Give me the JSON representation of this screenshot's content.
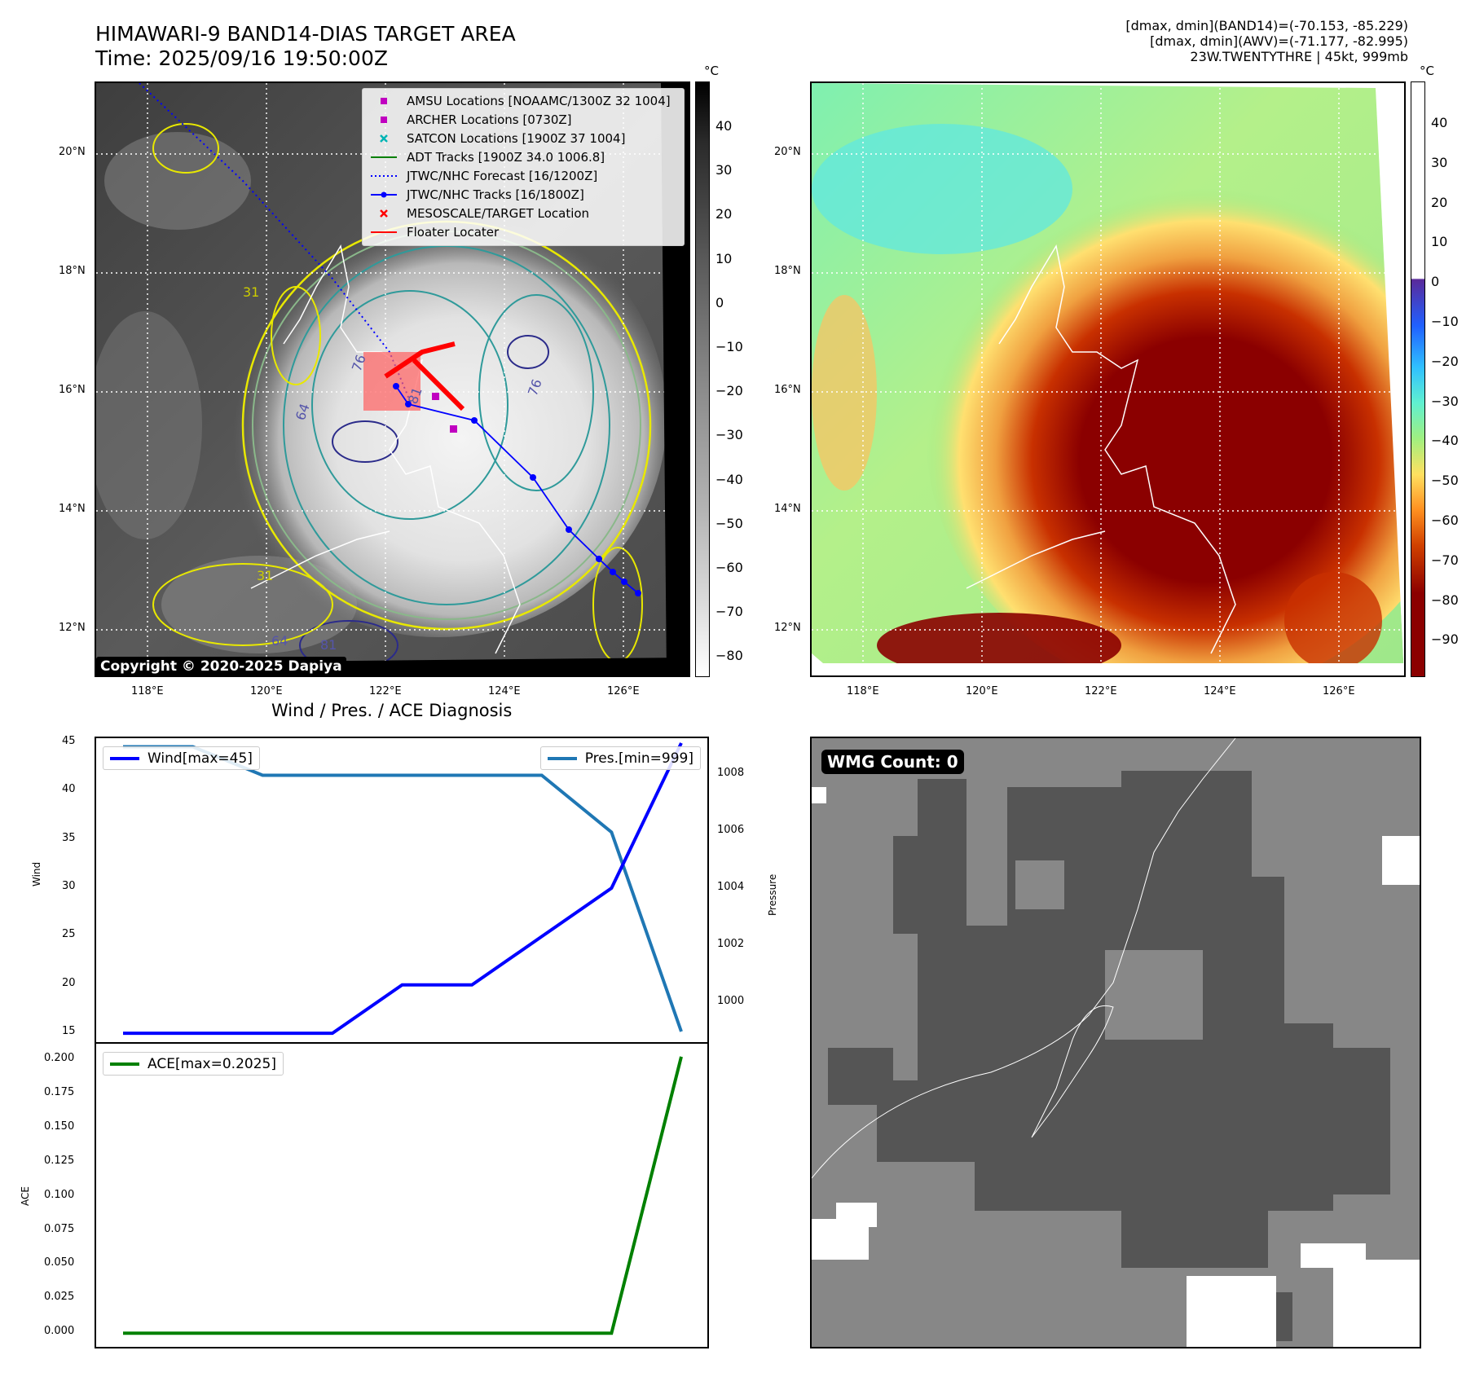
{
  "header": {
    "title_line1": "HIMAWARI-9 BAND14-DIAS TARGET AREA",
    "title_line2": "Time: 2025/09/16 19:50:00Z",
    "info_lines": [
      "[dmax, dmin](BAND14)=(-70.153, -85.229)",
      "[dmax, dmin](AWV)=(-71.177, -82.995)",
      "23W.TWENTYTHRE | 45kt, 999mb"
    ]
  },
  "map_axes": {
    "lon_ticks": [
      "118°E",
      "120°E",
      "122°E",
      "124°E",
      "126°E"
    ],
    "lat_ticks": [
      "20°N",
      "18°N",
      "16°N",
      "14°N",
      "12°N"
    ]
  },
  "ir_panel": {
    "copyright": "Copyright © 2020-2025 Dapiya",
    "legend": [
      {
        "label": "AMSU Locations [NOAAMC/1300Z 32 1004]",
        "symbol": "square",
        "color": "#c000c0"
      },
      {
        "label": "ARCHER Locations [0730Z]",
        "symbol": "square",
        "color": "#c000c0"
      },
      {
        "label": "SATCON Locations [1900Z 37 1004]",
        "symbol": "x",
        "color": "#00b4b4"
      },
      {
        "label": "ADT Tracks [1900Z 34.0 1006.8]",
        "symbol": "line",
        "color": "#008000"
      },
      {
        "label": "JTWC/NHC Forecast [16/1200Z]",
        "symbol": "dotted",
        "color": "#0000ff"
      },
      {
        "label": "JTWC/NHC Tracks [16/1800Z]",
        "symbol": "line-dot",
        "color": "#0000ff"
      },
      {
        "label": "MESOSCALE/TARGET Location",
        "symbol": "x",
        "color": "#ff0000"
      },
      {
        "label": "Floater Locater",
        "symbol": "line",
        "color": "#ff0000"
      }
    ],
    "colorbar": {
      "unit": "°C",
      "ticks": [
        "40",
        "30",
        "20",
        "10",
        "0",
        "−10",
        "−20",
        "−30",
        "−40",
        "−50",
        "−60",
        "−70",
        "−80"
      ]
    },
    "contour_labels": [
      "76",
      "64",
      "81",
      "64",
      "81",
      "76",
      "31",
      "31"
    ]
  },
  "awv_panel": {
    "colorbar": {
      "unit": "°C",
      "ticks": [
        "40",
        "30",
        "20",
        "10",
        "0",
        "−10",
        "−20",
        "−30",
        "−40",
        "−50",
        "−60",
        "−70",
        "−80",
        "−90"
      ]
    }
  },
  "wmg_panel": {
    "badge": "WMG Count: 0"
  },
  "colors": {
    "wind": "#0000ff",
    "pressure": "#1f77b4",
    "ace": "#008000",
    "track": "#0000ff",
    "floater": "#ff0000"
  },
  "chart_data": [
    {
      "type": "line",
      "title": "Wind / Pres. / ACE Diagnosis",
      "ylabel": "Wind",
      "ylabel_right": "Pressure",
      "x": [
        0,
        1,
        2,
        3,
        4,
        5,
        6,
        7,
        8
      ],
      "series": [
        {
          "name": "Wind[max=45]",
          "axis": "left",
          "values": [
            15,
            15,
            15,
            15,
            20,
            20,
            25,
            30,
            45
          ]
        },
        {
          "name": "Pres.[min=999]",
          "axis": "right",
          "values": [
            1009,
            1009,
            1008,
            1008,
            1008,
            1008,
            1008,
            1006,
            999
          ]
        }
      ],
      "ylim": [
        14,
        45.5
      ],
      "ylim_right": [
        998.6,
        1009.3
      ],
      "yticks": [
        15,
        20,
        25,
        30,
        35,
        40,
        45
      ],
      "yticks_right": [
        1000,
        1002,
        1004,
        1006,
        1008
      ],
      "legend": [
        "upper-left",
        "upper-right"
      ]
    },
    {
      "type": "line",
      "ylabel": "ACE",
      "x": [
        0,
        1,
        2,
        3,
        4,
        5,
        6,
        7,
        8
      ],
      "series": [
        {
          "name": "ACE[max=0.2025]",
          "values": [
            0,
            0,
            0,
            0,
            0,
            0,
            0,
            0,
            0.2025
          ]
        }
      ],
      "ylim": [
        -0.01,
        0.212
      ],
      "yticks": [
        0.0,
        0.025,
        0.05,
        0.075,
        0.1,
        0.125,
        0.15,
        0.175,
        0.2
      ],
      "ytick_labels": [
        "0.000",
        "0.025",
        "0.050",
        "0.075",
        "0.100",
        "0.125",
        "0.150",
        "0.175",
        "0.200"
      ],
      "legend": "upper-left"
    }
  ]
}
